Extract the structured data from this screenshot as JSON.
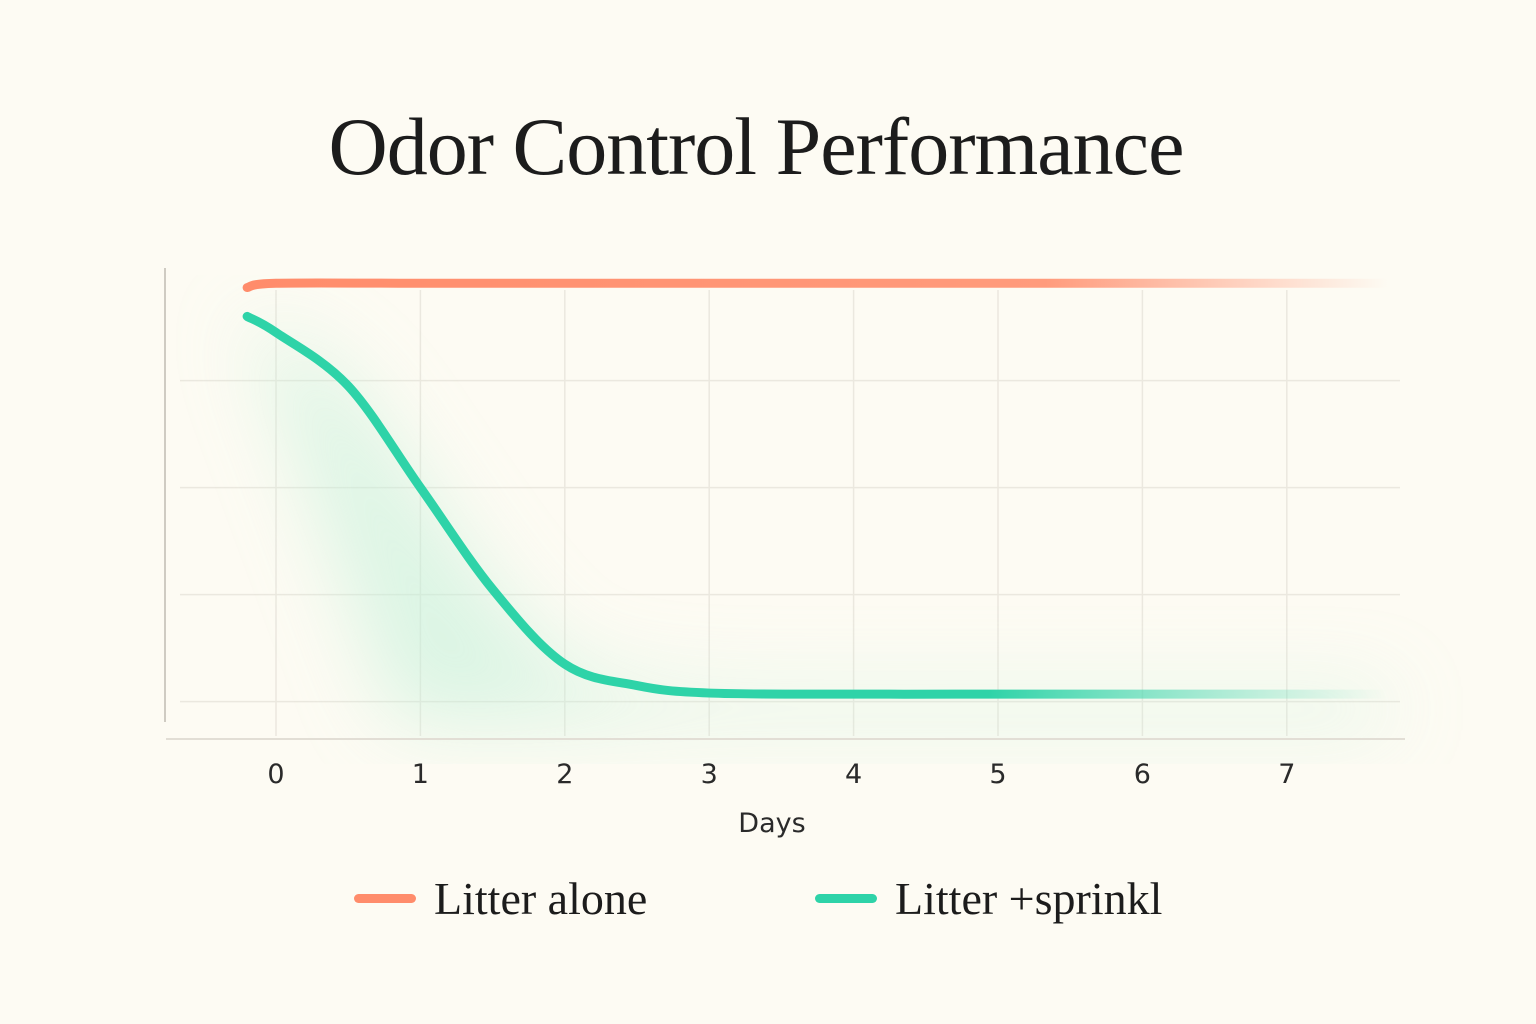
{
  "chart_data": {
    "type": "line",
    "title": "Odor Control Performance",
    "xlabel": "Days",
    "ylabel": "",
    "xticks": [
      0,
      1,
      2,
      3,
      4,
      5,
      6,
      7
    ],
    "xlim": [
      -0.75,
      7.85
    ],
    "ylim": [
      0.66,
      5.1
    ],
    "y_gridlines": [
      1,
      2,
      3,
      4
    ],
    "grid": true,
    "legend_position": "bottom",
    "series": [
      {
        "name": "Litter alone",
        "color": "#ff8c6b",
        "x": [
          -0.2,
          0,
          1,
          2,
          3,
          4,
          5,
          6,
          7,
          7.7
        ],
        "y": [
          4.87,
          4.91,
          4.91,
          4.91,
          4.91,
          4.91,
          4.91,
          4.91,
          4.91,
          4.91
        ]
      },
      {
        "name": "Litter +sprinkl",
        "color": "#2ed3a8",
        "x": [
          -0.2,
          0,
          0.5,
          1,
          1.5,
          2,
          2.5,
          3,
          4,
          5,
          6,
          7,
          7.7
        ],
        "y": [
          4.6,
          4.45,
          3.95,
          3.0,
          2.05,
          1.35,
          1.15,
          1.08,
          1.07,
          1.07,
          1.07,
          1.07,
          1.07
        ]
      }
    ]
  }
}
